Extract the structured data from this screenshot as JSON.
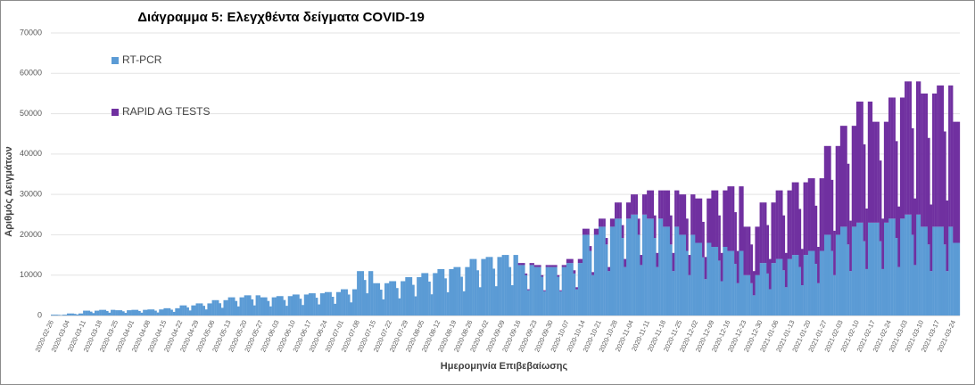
{
  "chart_data": {
    "type": "stacked_bar",
    "title": "Διάγραμμα 5: Ελεγχθέντα δείγματα COVID-19",
    "y_label": "Αριθμός Δειγμάτων",
    "x_label": "Ημερομηνία Επιβεβαίωσης",
    "ylim": [
      0,
      70000
    ],
    "yticks": [
      0,
      10000,
      20000,
      30000,
      40000,
      50000,
      60000,
      70000
    ],
    "legend": "upper-left",
    "categories": [
      "2020-02-26",
      null,
      null,
      null,
      null,
      null,
      null,
      "2020-03-04",
      null,
      null,
      null,
      null,
      null,
      null,
      "2020-03-11",
      null,
      null,
      null,
      null,
      null,
      null,
      "2020-03-18",
      null,
      null,
      null,
      null,
      null,
      null,
      "2020-03-25",
      null,
      null,
      null,
      null,
      null,
      null,
      "2020-04-01",
      null,
      null,
      null,
      null,
      null,
      null,
      "2020-04-08",
      null,
      null,
      null,
      null,
      null,
      null,
      "2020-04-15",
      null,
      null,
      null,
      null,
      null,
      null,
      "2020-04-22",
      null,
      null,
      null,
      null,
      null,
      null,
      "2020-04-29",
      null,
      null,
      null,
      null,
      null,
      null,
      "2020-05-06",
      null,
      null,
      null,
      null,
      null,
      null,
      "2020-05-13",
      null,
      null,
      null,
      null,
      null,
      null,
      "2020-05-20",
      null,
      null,
      null,
      null,
      null,
      null,
      "2020-05-27",
      null,
      null,
      null,
      null,
      null,
      null,
      "2020-06-03",
      null,
      null,
      null,
      null,
      null,
      null,
      "2020-06-10",
      null,
      null,
      null,
      null,
      null,
      null,
      "2020-06-17",
      null,
      null,
      null,
      null,
      null,
      null,
      "2020-06-24",
      null,
      null,
      null,
      null,
      null,
      null,
      "2020-07-01",
      null,
      null,
      null,
      null,
      null,
      null,
      "2020-07-08",
      null,
      null,
      null,
      null,
      null,
      null,
      "2020-07-15",
      null,
      null,
      null,
      null,
      null,
      null,
      "2020-07-22",
      null,
      null,
      null,
      null,
      null,
      null,
      "2020-07-29",
      null,
      null,
      null,
      null,
      null,
      null,
      "2020-08-05",
      null,
      null,
      null,
      null,
      null,
      null,
      "2020-08-12",
      null,
      null,
      null,
      null,
      null,
      null,
      "2020-08-19",
      null,
      null,
      null,
      null,
      null,
      null,
      "2020-08-26",
      null,
      null,
      null,
      null,
      null,
      null,
      "2020-09-02",
      null,
      null,
      null,
      null,
      null,
      null,
      "2020-09-09",
      null,
      null,
      null,
      null,
      null,
      null,
      "2020-09-16",
      null,
      null,
      null,
      null,
      null,
      null,
      "2020-09-23",
      null,
      null,
      null,
      null,
      null,
      null,
      "2020-09-30",
      null,
      null,
      null,
      null,
      null,
      null,
      "2020-10-07",
      null,
      null,
      null,
      null,
      null,
      null,
      "2020-10-14",
      null,
      null,
      null,
      null,
      null,
      null,
      "2020-10-21",
      null,
      null,
      null,
      null,
      null,
      null,
      "2020-10-28",
      null,
      null,
      null,
      null,
      null,
      null,
      "2020-11-04",
      null,
      null,
      null,
      null,
      null,
      null,
      "2020-11-11",
      null,
      null,
      null,
      null,
      null,
      null,
      "2020-11-18",
      null,
      null,
      null,
      null,
      null,
      null,
      "2020-11-25",
      null,
      null,
      null,
      null,
      null,
      null,
      "2020-12-02",
      null,
      null,
      null,
      null,
      null,
      null,
      "2020-12-09",
      null,
      null,
      null,
      null,
      null,
      null,
      "2020-12-16",
      null,
      null,
      null,
      null,
      null,
      null,
      "2020-12-23",
      null,
      null,
      null,
      null,
      null,
      null,
      "2020-12-30",
      null,
      null,
      null,
      null,
      null,
      null,
      "2021-01-06",
      null,
      null,
      null,
      null,
      null,
      null,
      "2021-01-13",
      null,
      null,
      null,
      null,
      null,
      null,
      "2021-01-20",
      null,
      null,
      null,
      null,
      null,
      null,
      "2021-01-27",
      null,
      null,
      null,
      null,
      null,
      null,
      "2021-02-03",
      null,
      null,
      null,
      null,
      null,
      null,
      "2021-02-10",
      null,
      null,
      null,
      null,
      null,
      null,
      "2021-02-17",
      null,
      null,
      null,
      null,
      null,
      null,
      "2021-02-24",
      null,
      null,
      null,
      null,
      null,
      null,
      "2021-03-03",
      null,
      null,
      null,
      null,
      null,
      null,
      "2021-03-10",
      null,
      null,
      null,
      null,
      null,
      null,
      "2021-03-17",
      null,
      null,
      null,
      null,
      null,
      null,
      "2021-03-24",
      null,
      null
    ],
    "series": [
      {
        "name": "RT-PCR",
        "color": "#5b9bd5",
        "values": [
          200,
          200,
          200,
          160,
          100,
          200,
          200,
          500,
          500,
          500,
          400,
          250,
          500,
          500,
          1200,
          1200,
          1200,
          960,
          600,
          1200,
          1200,
          1400,
          1400,
          1400,
          1120,
          700,
          1400,
          1400,
          1300,
          1300,
          1300,
          1040,
          650,
          1300,
          1300,
          1400,
          1400,
          1400,
          1120,
          700,
          1400,
          1400,
          1500,
          1500,
          1500,
          1200,
          750,
          1500,
          1500,
          1800,
          1800,
          1800,
          1440,
          900,
          1800,
          1800,
          2500,
          2500,
          2500,
          2000,
          1250,
          2500,
          2500,
          3000,
          3000,
          3000,
          2400,
          1500,
          3000,
          3000,
          3800,
          3800,
          3800,
          3040,
          1900,
          3800,
          3800,
          4500,
          4500,
          4500,
          3600,
          2250,
          4500,
          4500,
          5000,
          5000,
          5000,
          4000,
          2500,
          5000,
          5000,
          4500,
          4500,
          4500,
          3600,
          2250,
          4500,
          4500,
          4800,
          4800,
          4800,
          3840,
          2400,
          4800,
          4800,
          5200,
          5200,
          5200,
          4160,
          2600,
          5200,
          5200,
          5500,
          5500,
          5500,
          4400,
          2750,
          5500,
          5500,
          5800,
          5800,
          5800,
          4640,
          2900,
          5800,
          5800,
          6500,
          6500,
          6500,
          5200,
          3250,
          6500,
          6500,
          11000,
          11000,
          11000,
          8800,
          5500,
          11000,
          11000,
          8000,
          8000,
          8000,
          6400,
          4000,
          8000,
          8000,
          8500,
          8500,
          8500,
          6800,
          4250,
          8500,
          8500,
          9500,
          9500,
          9500,
          7600,
          4750,
          9500,
          9500,
          10500,
          10500,
          10500,
          8400,
          5250,
          10500,
          10500,
          11500,
          11500,
          11500,
          9200,
          5750,
          11500,
          11500,
          12000,
          12000,
          12000,
          9600,
          6000,
          12000,
          12000,
          14000,
          14000,
          14000,
          11200,
          7000,
          14000,
          14000,
          14500,
          14500,
          14500,
          11600,
          7250,
          14500,
          14500,
          15000,
          15000,
          15000,
          12000,
          7500,
          15000,
          15000,
          12500,
          12500,
          12500,
          10000,
          6250,
          12500,
          12500,
          12000,
          12000,
          12000,
          9600,
          6000,
          12000,
          12000,
          12000,
          12000,
          12000,
          9600,
          6000,
          12000,
          12000,
          13000,
          13000,
          13000,
          10400,
          6500,
          13000,
          13000,
          20000,
          20000,
          20000,
          16000,
          10000,
          20000,
          20000,
          22000,
          22000,
          22000,
          17600,
          11000,
          22000,
          22000,
          24000,
          24000,
          24000,
          19200,
          12000,
          24000,
          24000,
          25000,
          25000,
          25000,
          20000,
          12500,
          25000,
          25000,
          24000,
          24000,
          24000,
          19200,
          12000,
          24000,
          24000,
          22000,
          22000,
          22000,
          17600,
          11000,
          22000,
          22000,
          20000,
          20000,
          20000,
          16000,
          10000,
          20000,
          20000,
          18000,
          18000,
          18000,
          14400,
          9000,
          18000,
          18000,
          17000,
          17000,
          17000,
          13600,
          8500,
          17000,
          17000,
          16000,
          16000,
          16000,
          12800,
          8000,
          16000,
          16000,
          10000,
          10000,
          10000,
          8000,
          5000,
          10000,
          10000,
          13000,
          13000,
          13000,
          10400,
          6500,
          13000,
          13000,
          14000,
          14000,
          14000,
          11200,
          7000,
          14000,
          14000,
          15000,
          15000,
          15000,
          12000,
          7500,
          15000,
          15000,
          16000,
          16000,
          16000,
          12800,
          8000,
          16000,
          16000,
          20000,
          20000,
          20000,
          16000,
          10000,
          20000,
          20000,
          22000,
          22000,
          22000,
          17600,
          11000,
          22000,
          22000,
          23000,
          23000,
          23000,
          18400,
          11500,
          23000,
          23000,
          23000,
          23000,
          23000,
          18400,
          11500,
          23000,
          23000,
          24000,
          24000,
          24000,
          19200,
          12000,
          24000,
          24000,
          25000,
          25000,
          25000,
          20000,
          12500,
          25000,
          25000,
          22000,
          22000,
          22000,
          17600,
          11000,
          22000,
          22000,
          22000,
          22000,
          22000,
          17600,
          11000,
          22000,
          22000,
          18000,
          18000,
          18000
        ]
      },
      {
        "name": "RAPID AG TESTS",
        "color": "#7030a0",
        "values": [
          0,
          0,
          0,
          0,
          0,
          0,
          0,
          0,
          0,
          0,
          0,
          0,
          0,
          0,
          0,
          0,
          0,
          0,
          0,
          0,
          0,
          0,
          0,
          0,
          0,
          0,
          0,
          0,
          0,
          0,
          0,
          0,
          0,
          0,
          0,
          0,
          0,
          0,
          0,
          0,
          0,
          0,
          0,
          0,
          0,
          0,
          0,
          0,
          0,
          0,
          0,
          0,
          0,
          0,
          0,
          0,
          0,
          0,
          0,
          0,
          0,
          0,
          0,
          0,
          0,
          0,
          0,
          0,
          0,
          0,
          0,
          0,
          0,
          0,
          0,
          0,
          0,
          0,
          0,
          0,
          0,
          0,
          0,
          0,
          0,
          0,
          0,
          0,
          0,
          0,
          0,
          0,
          0,
          0,
          0,
          0,
          0,
          0,
          0,
          0,
          0,
          0,
          0,
          0,
          0,
          0,
          0,
          0,
          0,
          0,
          0,
          0,
          0,
          0,
          0,
          0,
          0,
          0,
          0,
          0,
          0,
          0,
          0,
          0,
          0,
          0,
          0,
          0,
          0,
          0,
          0,
          0,
          0,
          0,
          0,
          0,
          0,
          0,
          0,
          0,
          0,
          0,
          0,
          0,
          0,
          0,
          0,
          0,
          0,
          0,
          0,
          0,
          0,
          0,
          0,
          0,
          0,
          0,
          0,
          0,
          0,
          0,
          0,
          0,
          0,
          0,
          0,
          0,
          0,
          0,
          0,
          0,
          0,
          0,
          0,
          0,
          0,
          0,
          0,
          0,
          0,
          0,
          0,
          0,
          0,
          0,
          0,
          0,
          0,
          0,
          0,
          0,
          0,
          0,
          0,
          0,
          0,
          0,
          0,
          0,
          0,
          0,
          0,
          500,
          500,
          500,
          400,
          250,
          500,
          500,
          500,
          500,
          500,
          400,
          250,
          500,
          500,
          500,
          500,
          500,
          400,
          250,
          500,
          500,
          1000,
          1000,
          1000,
          800,
          500,
          1000,
          1000,
          1500,
          1500,
          1500,
          1200,
          750,
          1500,
          1500,
          2000,
          2000,
          2000,
          1600,
          1000,
          2000,
          2000,
          4000,
          4000,
          4000,
          3200,
          2000,
          4000,
          4000,
          5000,
          5000,
          5000,
          4000,
          2500,
          5000,
          5000,
          7000,
          7000,
          7000,
          5600,
          3500,
          7000,
          7000,
          9000,
          9000,
          9000,
          7200,
          4500,
          9000,
          9000,
          10000,
          10000,
          10000,
          8000,
          5000,
          10000,
          10000,
          11000,
          11000,
          11000,
          8800,
          5500,
          11000,
          11000,
          14000,
          14000,
          14000,
          11200,
          7000,
          14000,
          14000,
          16000,
          16000,
          16000,
          12800,
          8000,
          16000,
          16000,
          12000,
          12000,
          12000,
          9600,
          6000,
          12000,
          12000,
          15000,
          15000,
          15000,
          12000,
          7500,
          15000,
          15000,
          17000,
          17000,
          17000,
          13600,
          8500,
          17000,
          17000,
          18000,
          18000,
          18000,
          14400,
          9000,
          18000,
          18000,
          18000,
          18000,
          18000,
          14400,
          9000,
          18000,
          18000,
          22000,
          22000,
          22000,
          17600,
          11000,
          22000,
          22000,
          25000,
          25000,
          25000,
          20000,
          12500,
          25000,
          25000,
          30000,
          30000,
          30000,
          24000,
          15000,
          30000,
          30000,
          25000,
          25000,
          25000,
          20000,
          12500,
          25000,
          25000,
          30000,
          30000,
          30000,
          24000,
          15000,
          30000,
          30000,
          33000,
          33000,
          33000,
          26400,
          16500,
          33000,
          33000,
          33000,
          33000,
          33000,
          26400,
          16500,
          33000,
          33000,
          35000,
          35000,
          35000,
          28000,
          17500,
          35000,
          35000,
          30000,
          30000,
          30000
        ]
      }
    ]
  }
}
